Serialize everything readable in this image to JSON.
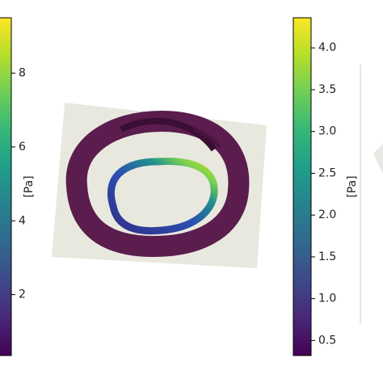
{
  "chart_data": [
    {
      "type": "colorbar",
      "label": "[Pa]",
      "colormap": "viridis",
      "ylim": [
        0.35,
        9.5
      ],
      "yticks": [
        2,
        4,
        6,
        8
      ]
    },
    {
      "type": "colorbar",
      "label": "[Pa]",
      "colormap": "viridis",
      "ylim": [
        0.32,
        4.36
      ],
      "yticks": [
        0.5,
        {
          "value": 1,
          "label": "1.0"
        },
        1.5,
        {
          "value": 2,
          "label": "2.0"
        },
        2.5,
        {
          "value": 3,
          "label": "3.0"
        },
        3.5,
        {
          "value": 4,
          "label": "4.0"
        }
      ]
    }
  ]
}
